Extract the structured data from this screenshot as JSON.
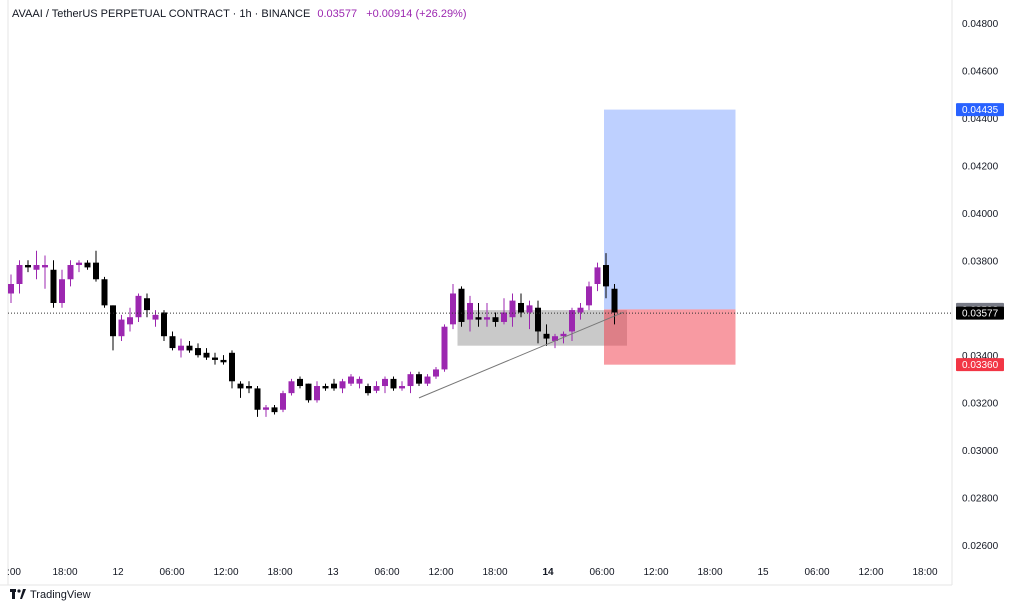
{
  "header": {
    "symbol": "AVAAI / TetherUS PERPETUAL CONTRACT · 1h · BINANCE",
    "last_price": "0.03577",
    "change": "+0.00914 (+26.29%)"
  },
  "brand": {
    "logo_icon": "tradingview-logo-icon",
    "name": "TradingView"
  },
  "colors": {
    "bull": "#9c27b0",
    "bear": "#000000",
    "target": "#2962ff",
    "stop": "#f23645"
  },
  "chart_data": {
    "type": "candlestick",
    "y_axis": {
      "ticks": [
        "0.04800",
        "0.04600",
        "0.04400",
        "0.04200",
        "0.04000",
        "0.03800",
        "0.03600",
        "0.03400",
        "0.03200",
        "0.03000",
        "0.02800",
        "0.02600"
      ],
      "tick_values": [
        0.048,
        0.046,
        0.044,
        0.042,
        0.04,
        0.038,
        0.036,
        0.034,
        0.032,
        0.03,
        0.028,
        0.026
      ],
      "range": [
        0.0255,
        0.049
      ]
    },
    "x_axis": {
      "labels": [
        ":00",
        "18:00",
        "12",
        "06:00",
        "12:00",
        "18:00",
        "13",
        "06:00",
        "12:00",
        "18:00",
        "14",
        "06:00",
        "12:00",
        "18:00",
        "15",
        "06:00",
        "12:00",
        "18:00"
      ],
      "bold_labels": [
        "14"
      ]
    },
    "candles": [
      {
        "o": 0.0366,
        "h": 0.0374,
        "l": 0.0362,
        "c": 0.037
      },
      {
        "o": 0.037,
        "h": 0.038,
        "l": 0.0366,
        "c": 0.0378
      },
      {
        "o": 0.0378,
        "h": 0.038,
        "l": 0.0375,
        "c": 0.0377
      },
      {
        "o": 0.0376,
        "h": 0.0384,
        "l": 0.0372,
        "c": 0.0378
      },
      {
        "o": 0.0377,
        "h": 0.0382,
        "l": 0.0368,
        "c": 0.0378
      },
      {
        "o": 0.0376,
        "h": 0.038,
        "l": 0.036,
        "c": 0.0362
      },
      {
        "o": 0.0362,
        "h": 0.0376,
        "l": 0.036,
        "c": 0.0372
      },
      {
        "o": 0.0372,
        "h": 0.038,
        "l": 0.0369,
        "c": 0.0378
      },
      {
        "o": 0.0378,
        "h": 0.038,
        "l": 0.0375,
        "c": 0.0379
      },
      {
        "o": 0.0379,
        "h": 0.038,
        "l": 0.0376,
        "c": 0.0377
      },
      {
        "o": 0.0379,
        "h": 0.0384,
        "l": 0.0371,
        "c": 0.0372
      },
      {
        "o": 0.0372,
        "h": 0.0373,
        "l": 0.036,
        "c": 0.0361
      },
      {
        "o": 0.0361,
        "h": 0.0361,
        "l": 0.0342,
        "c": 0.0348
      },
      {
        "o": 0.0348,
        "h": 0.0357,
        "l": 0.0346,
        "c": 0.0355
      },
      {
        "o": 0.0353,
        "h": 0.036,
        "l": 0.035,
        "c": 0.0356
      },
      {
        "o": 0.0356,
        "h": 0.0366,
        "l": 0.0354,
        "c": 0.0365
      },
      {
        "o": 0.0364,
        "h": 0.0366,
        "l": 0.0356,
        "c": 0.0359
      },
      {
        "o": 0.0355,
        "h": 0.0359,
        "l": 0.0352,
        "c": 0.0357
      },
      {
        "o": 0.0358,
        "h": 0.0359,
        "l": 0.0346,
        "c": 0.0348
      },
      {
        "o": 0.0348,
        "h": 0.035,
        "l": 0.0342,
        "c": 0.0343
      },
      {
        "o": 0.0342,
        "h": 0.0347,
        "l": 0.0339,
        "c": 0.0344
      },
      {
        "o": 0.0344,
        "h": 0.0346,
        "l": 0.0341,
        "c": 0.0342
      },
      {
        "o": 0.0343,
        "h": 0.0345,
        "l": 0.0339,
        "c": 0.034
      },
      {
        "o": 0.0341,
        "h": 0.0343,
        "l": 0.0338,
        "c": 0.0339
      },
      {
        "o": 0.0339,
        "h": 0.0341,
        "l": 0.0336,
        "c": 0.0338
      },
      {
        "o": 0.0338,
        "h": 0.034,
        "l": 0.0336,
        "c": 0.0337
      },
      {
        "o": 0.0341,
        "h": 0.0342,
        "l": 0.0326,
        "c": 0.0329
      },
      {
        "o": 0.0328,
        "h": 0.0329,
        "l": 0.0322,
        "c": 0.0326
      },
      {
        "o": 0.0327,
        "h": 0.0329,
        "l": 0.0324,
        "c": 0.0326
      },
      {
        "o": 0.0326,
        "h": 0.0327,
        "l": 0.0314,
        "c": 0.0317
      },
      {
        "o": 0.0317,
        "h": 0.0319,
        "l": 0.0314,
        "c": 0.0318
      },
      {
        "o": 0.0318,
        "h": 0.0319,
        "l": 0.0315,
        "c": 0.0316
      },
      {
        "o": 0.0317,
        "h": 0.0325,
        "l": 0.0316,
        "c": 0.0324
      },
      {
        "o": 0.0324,
        "h": 0.033,
        "l": 0.0323,
        "c": 0.0329
      },
      {
        "o": 0.033,
        "h": 0.0331,
        "l": 0.0326,
        "c": 0.0327
      },
      {
        "o": 0.0328,
        "h": 0.0328,
        "l": 0.032,
        "c": 0.0321
      },
      {
        "o": 0.0321,
        "h": 0.0329,
        "l": 0.032,
        "c": 0.0327
      },
      {
        "o": 0.0327,
        "h": 0.0328,
        "l": 0.0325,
        "c": 0.0326
      },
      {
        "o": 0.0328,
        "h": 0.033,
        "l": 0.0325,
        "c": 0.0326
      },
      {
        "o": 0.0326,
        "h": 0.033,
        "l": 0.0324,
        "c": 0.0329
      },
      {
        "o": 0.0328,
        "h": 0.0332,
        "l": 0.0327,
        "c": 0.0331
      },
      {
        "o": 0.0328,
        "h": 0.0331,
        "l": 0.0326,
        "c": 0.033
      },
      {
        "o": 0.0327,
        "h": 0.0328,
        "l": 0.0323,
        "c": 0.0324
      },
      {
        "o": 0.0325,
        "h": 0.0329,
        "l": 0.0324,
        "c": 0.0327
      },
      {
        "o": 0.0327,
        "h": 0.0331,
        "l": 0.0324,
        "c": 0.033
      },
      {
        "o": 0.033,
        "h": 0.0331,
        "l": 0.0325,
        "c": 0.0326
      },
      {
        "o": 0.0326,
        "h": 0.0329,
        "l": 0.0325,
        "c": 0.0327
      },
      {
        "o": 0.0327,
        "h": 0.0333,
        "l": 0.0324,
        "c": 0.0332
      },
      {
        "o": 0.0332,
        "h": 0.0333,
        "l": 0.0327,
        "c": 0.0328
      },
      {
        "o": 0.0328,
        "h": 0.0332,
        "l": 0.0327,
        "c": 0.0331
      },
      {
        "o": 0.0331,
        "h": 0.0335,
        "l": 0.033,
        "c": 0.0334
      },
      {
        "o": 0.0334,
        "h": 0.0353,
        "l": 0.0333,
        "c": 0.0352
      },
      {
        "o": 0.0353,
        "h": 0.037,
        "l": 0.0351,
        "c": 0.0366
      },
      {
        "o": 0.0368,
        "h": 0.0369,
        "l": 0.0352,
        "c": 0.0354
      },
      {
        "o": 0.0355,
        "h": 0.0365,
        "l": 0.035,
        "c": 0.0362
      },
      {
        "o": 0.0356,
        "h": 0.0362,
        "l": 0.0352,
        "c": 0.0355
      },
      {
        "o": 0.0355,
        "h": 0.0362,
        "l": 0.0352,
        "c": 0.0356
      },
      {
        "o": 0.0356,
        "h": 0.0358,
        "l": 0.0352,
        "c": 0.0354
      },
      {
        "o": 0.0354,
        "h": 0.0364,
        "l": 0.0353,
        "c": 0.0358
      },
      {
        "o": 0.0356,
        "h": 0.0366,
        "l": 0.0352,
        "c": 0.0363
      },
      {
        "o": 0.0362,
        "h": 0.0366,
        "l": 0.0356,
        "c": 0.0358
      },
      {
        "o": 0.0358,
        "h": 0.0363,
        "l": 0.0351,
        "c": 0.0361
      },
      {
        "o": 0.036,
        "h": 0.0363,
        "l": 0.0345,
        "c": 0.035
      },
      {
        "o": 0.0349,
        "h": 0.0353,
        "l": 0.0344,
        "c": 0.0347
      },
      {
        "o": 0.0346,
        "h": 0.0349,
        "l": 0.0343,
        "c": 0.0348
      },
      {
        "o": 0.0348,
        "h": 0.035,
        "l": 0.0345,
        "c": 0.0349
      },
      {
        "o": 0.035,
        "h": 0.036,
        "l": 0.0346,
        "c": 0.0359
      },
      {
        "o": 0.0358,
        "h": 0.0362,
        "l": 0.0355,
        "c": 0.036
      },
      {
        "o": 0.0361,
        "h": 0.0371,
        "l": 0.0359,
        "c": 0.0369
      },
      {
        "o": 0.037,
        "h": 0.0379,
        "l": 0.0367,
        "c": 0.0377
      },
      {
        "o": 0.0378,
        "h": 0.0383,
        "l": 0.0364,
        "c": 0.0369
      },
      {
        "o": 0.0368,
        "h": 0.037,
        "l": 0.0353,
        "c": 0.0358
      }
    ],
    "price_lines": [
      {
        "label": "0.04435",
        "value": 0.04435,
        "color": "#2962ff"
      },
      {
        "label": "0.03593",
        "value": 0.03593,
        "color": "#787b86"
      },
      {
        "label": "0.03577",
        "value": 0.03577,
        "color": "#000000"
      },
      {
        "label": "0.03360",
        "value": 0.0336,
        "color": "#f23645"
      }
    ],
    "position": {
      "entry": 0.03593,
      "target": 0.04435,
      "stop": 0.0336,
      "start_candle": 70,
      "end_candle": 85
    },
    "range_box": {
      "top": 0.0359,
      "bottom": 0.0344,
      "start_candle": 53,
      "end_candle": 72
    },
    "trendline": {
      "from_candle": 48,
      "from_value": 0.0322,
      "to_candle": 72,
      "to_value": 0.0358
    }
  }
}
